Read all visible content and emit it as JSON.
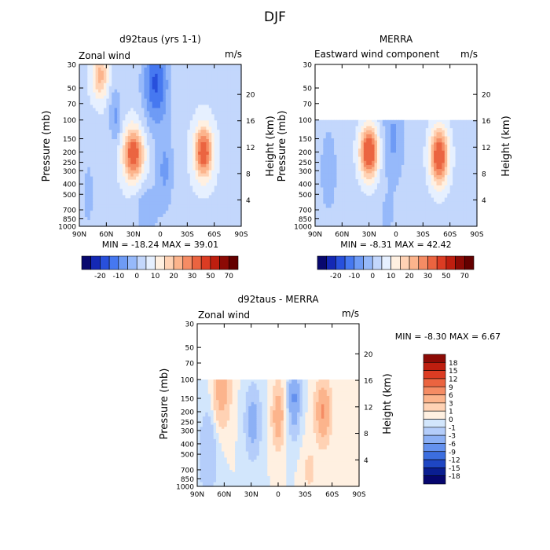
{
  "figure_title": "DJF",
  "y_ticks": {
    "pressure": [
      "30",
      "50",
      "70",
      "100",
      "150",
      "200",
      "250",
      "300",
      "400",
      "500",
      "700",
      "850",
      "1000"
    ],
    "height": [
      "20",
      "16",
      "12",
      "8",
      "4"
    ]
  },
  "x_ticks": [
    "90N",
    "60N",
    "30N",
    "0",
    "30S",
    "60S",
    "90S"
  ],
  "panels": [
    {
      "title": "d92taus (yrs 1-1)",
      "left_label": "Zonal wind",
      "right_label": "m/s",
      "ylabel": "Pressure (mb)",
      "ylabel2": "Height (km)",
      "stats": "MIN = -18.24   MAX =  39.01"
    },
    {
      "title": "MERRA",
      "left_label": "Eastward wind component",
      "right_label": "m/s",
      "ylabel": "Pressure (mb)",
      "ylabel2": "Height (km)",
      "stats": "MIN = -8.31   MAX =  42.42"
    },
    {
      "title": "d92taus - MERRA",
      "left_label": "Zonal wind",
      "right_label": "m/s",
      "ylabel": "Pressure (mb)",
      "ylabel2": "Height (km)",
      "stats": "MIN =  -8.30   MAX =   6.67"
    }
  ],
  "colorbars": {
    "top": {
      "labels": [
        "-20",
        "-10",
        "0",
        "10",
        "20",
        "30",
        "50",
        "70"
      ],
      "colors": [
        "#08086e",
        "#1428b4",
        "#2850dc",
        "#4678f0",
        "#6e9bf5",
        "#96b9fa",
        "#c3d7fc",
        "#e6f0ff",
        "#fff0e1",
        "#ffd2b4",
        "#fcb48c",
        "#f58c64",
        "#eb6440",
        "#dc3c23",
        "#be1e0f",
        "#8c0a05",
        "#640000"
      ]
    },
    "diff": {
      "labels": [
        "18",
        "15",
        "12",
        "9",
        "6",
        "3",
        "1",
        "0",
        "-1",
        "-3",
        "-6",
        "-9",
        "-12",
        "-15",
        "-18"
      ],
      "colors": [
        "#8c0a05",
        "#be1e0f",
        "#dc3c23",
        "#eb6440",
        "#f58c64",
        "#fcb48c",
        "#ffd2b4",
        "#fff0e1",
        "#d2e6fc",
        "#b4cdfa",
        "#8cb0f5",
        "#6491ee",
        "#3c6edf",
        "#1e46c3",
        "#0a1e91",
        "#06066e"
      ]
    }
  },
  "chart_data": [
    {
      "type": "heatmap",
      "title": "d92taus (yrs 1-1)",
      "variable": "Zonal wind",
      "units": "m/s",
      "xlabel": "",
      "ylabel": "Pressure (mb)",
      "y2label": "Height (km)",
      "x": [
        "90N",
        "60N",
        "30N",
        "0",
        "30S",
        "60S",
        "90S"
      ],
      "ylim": [
        1000,
        30
      ],
      "min": -18.24,
      "max": 39.01,
      "features": [
        {
          "kind": "jet",
          "lat": 67,
          "p": 40,
          "value": 22
        },
        {
          "kind": "jet",
          "lat": 30,
          "p": 200,
          "value": 35
        },
        {
          "kind": "jet",
          "lat": -48,
          "p": 200,
          "value": 35
        },
        {
          "kind": "easterly",
          "lat": 0,
          "p": 50,
          "value": -16
        },
        {
          "kind": "easterly",
          "lat": 10,
          "p": 700,
          "value": -8
        }
      ]
    },
    {
      "type": "heatmap",
      "title": "MERRA",
      "variable": "Eastward wind component",
      "units": "m/s",
      "xlabel": "",
      "ylabel": "Pressure (mb)",
      "y2label": "Height (km)",
      "x": [
        "90N",
        "60N",
        "30N",
        "0",
        "30S",
        "60S",
        "90S"
      ],
      "ylim": [
        1000,
        30
      ],
      "data_top_p": 100,
      "min": -8.31,
      "max": 42.42,
      "features": [
        {
          "kind": "jet",
          "lat": 30,
          "p": 200,
          "value": 40
        },
        {
          "kind": "jet",
          "lat": -48,
          "p": 220,
          "value": 38
        },
        {
          "kind": "easterly",
          "lat": 0,
          "p": 150,
          "value": -6
        }
      ]
    },
    {
      "type": "heatmap",
      "title": "d92taus - MERRA",
      "variable": "Zonal wind",
      "units": "m/s",
      "xlabel": "",
      "ylabel": "Pressure (mb)",
      "y2label": "Height (km)",
      "x": [
        "90N",
        "60N",
        "30N",
        "0",
        "30S",
        "60S",
        "90S"
      ],
      "ylim": [
        1000,
        30
      ],
      "data_top_p": 100,
      "min": -8.3,
      "max": 6.67,
      "features": [
        {
          "kind": "positive",
          "lat": 63,
          "p": 120,
          "value": 4
        },
        {
          "kind": "positive",
          "lat": 0,
          "p": 220,
          "value": 5
        },
        {
          "kind": "positive",
          "lat": -50,
          "p": 200,
          "value": 6
        },
        {
          "kind": "negative",
          "lat": 28,
          "p": 250,
          "value": -4
        },
        {
          "kind": "negative",
          "lat": -18,
          "p": 150,
          "value": -6
        }
      ]
    }
  ]
}
